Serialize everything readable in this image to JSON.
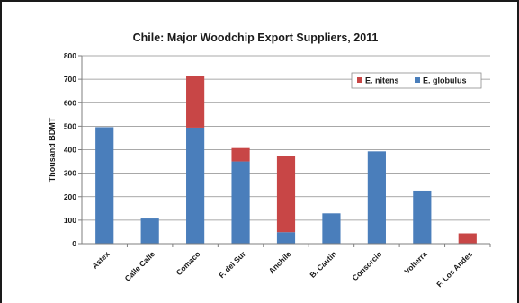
{
  "chart_data": {
    "type": "bar",
    "stacked": true,
    "title": "Chile: Major Woodchip Export Suppliers, 2011",
    "xlabel": "",
    "ylabel": "Thousand BDMT",
    "ylim": [
      0,
      800
    ],
    "yticks": [
      0,
      100,
      200,
      300,
      400,
      500,
      600,
      700,
      800
    ],
    "grid": true,
    "legend_position": "top-right",
    "categories": [
      "Astex",
      "Calle Calle",
      "Comaco",
      "F. del Sur",
      "Anchile",
      "B. Cautin",
      "Consorcio",
      "Volterra",
      "F. Los Andes"
    ],
    "series": [
      {
        "name": "E. globulus",
        "color": "#4a7ebb",
        "values": [
          496,
          107,
          494,
          350,
          49,
          129,
          393,
          226,
          0
        ]
      },
      {
        "name": "E. nitens",
        "color": "#c84646",
        "values": [
          0,
          0,
          218,
          57,
          326,
          0,
          0,
          0,
          44
        ]
      }
    ],
    "legend_order": [
      "E. nitens",
      "E. globulus"
    ]
  }
}
